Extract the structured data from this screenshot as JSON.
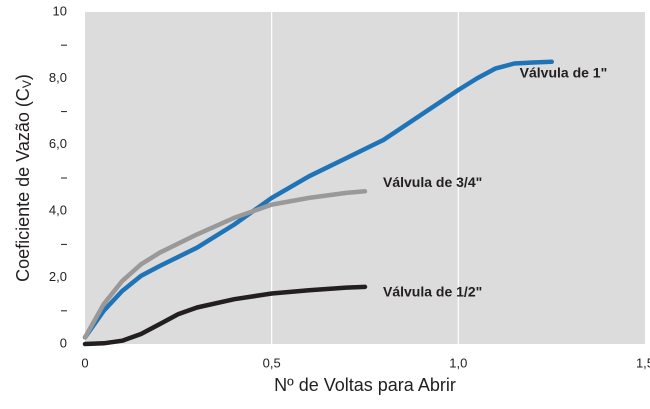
{
  "chart_data": {
    "type": "line",
    "xlabel": "Nº de Voltas para Abrir",
    "ylabel": {
      "text": "Coeficiente de Vazão (C",
      "subscript": "V",
      "suffix": ")"
    },
    "xlim": [
      0,
      1.5
    ],
    "xticks": [
      0,
      {
        "value": 0.5,
        "label": "0,5"
      },
      {
        "value": 1.0,
        "label": "1,0"
      },
      {
        "value": 1.5,
        "label": "1,5"
      }
    ],
    "ylim": [
      0,
      10
    ],
    "yticks": [
      0,
      {
        "value": 2,
        "label": "2,0"
      },
      {
        "value": 4,
        "label": "4,0"
      },
      {
        "value": 6,
        "label": "6,0"
      },
      {
        "value": 8,
        "label": "8,0"
      },
      10
    ],
    "yminor_ticks": [
      1,
      3,
      5,
      7,
      9
    ],
    "grid": "x",
    "background": "#dcdcdd",
    "series": [
      {
        "name": "Válvula de 1\"",
        "color": "#1f74b8",
        "label_color": "#1f74b8",
        "x": [
          0,
          0.05,
          0.1,
          0.15,
          0.2,
          0.3,
          0.4,
          0.5,
          0.6,
          0.7,
          0.8,
          0.9,
          1.0,
          1.05,
          1.1,
          1.15,
          1.2,
          1.25
        ],
        "values": [
          0.2,
          1.0,
          1.6,
          2.05,
          2.35,
          2.9,
          3.6,
          4.4,
          5.05,
          5.6,
          6.15,
          6.9,
          7.65,
          8.0,
          8.3,
          8.45,
          8.48,
          8.5
        ]
      },
      {
        "name": "Válvula de 3/4\"",
        "color": "#999999",
        "label_color": "#231f20",
        "x": [
          0,
          0.05,
          0.1,
          0.15,
          0.2,
          0.3,
          0.4,
          0.5,
          0.6,
          0.7,
          0.75
        ],
        "values": [
          0.2,
          1.2,
          1.9,
          2.4,
          2.75,
          3.3,
          3.8,
          4.2,
          4.4,
          4.55,
          4.6
        ]
      },
      {
        "name": "Válvula de 1/2\"",
        "color": "#231f20",
        "label_color": "#231f20",
        "x": [
          0,
          0.05,
          0.1,
          0.15,
          0.2,
          0.25,
          0.3,
          0.4,
          0.5,
          0.6,
          0.7,
          0.75
        ],
        "values": [
          0,
          0.02,
          0.1,
          0.3,
          0.6,
          0.9,
          1.1,
          1.35,
          1.52,
          1.62,
          1.7,
          1.72
        ]
      }
    ]
  }
}
